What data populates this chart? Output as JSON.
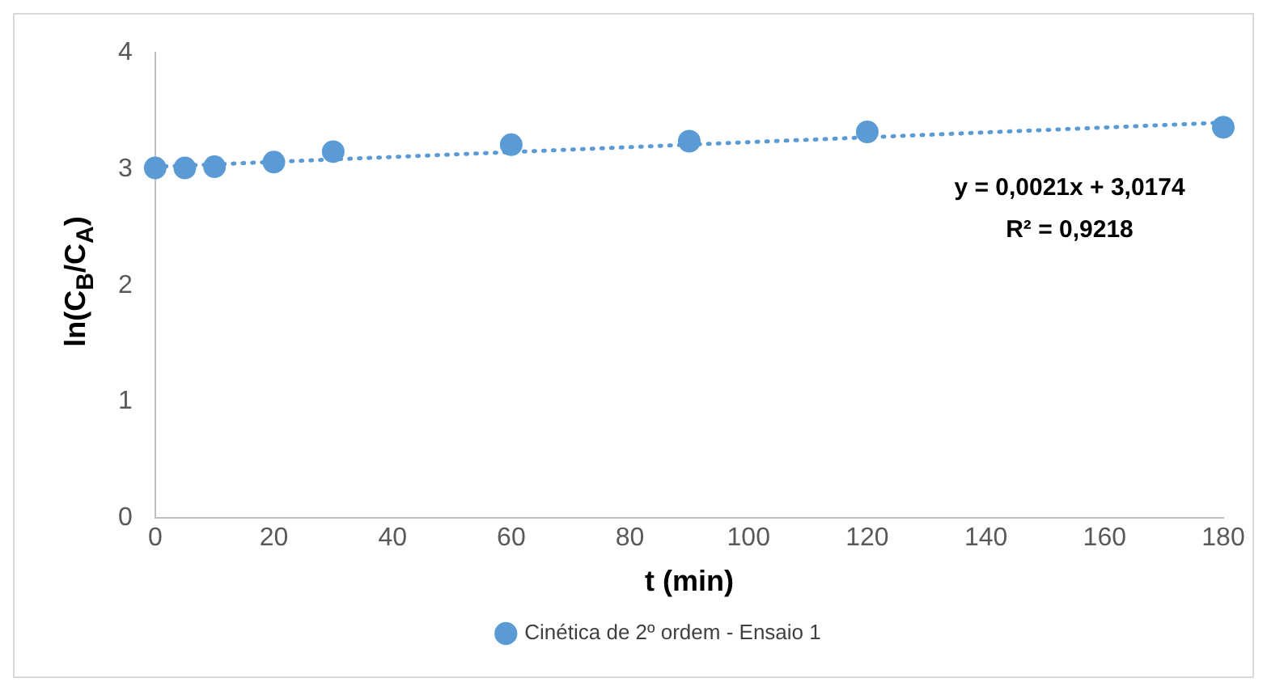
{
  "chart_data": {
    "type": "scatter",
    "xlabel": "t (min)",
    "ylabel": "ln(C$_{B}$/C$_{A}$)",
    "xlim": [
      0,
      180
    ],
    "xticks": [
      0,
      20,
      40,
      60,
      80,
      100,
      120,
      140,
      160,
      180
    ],
    "ylim": [
      0,
      4
    ],
    "yticks": [
      0,
      1,
      2,
      3,
      4
    ],
    "grid": false,
    "legend": "bottom",
    "annotations": [
      "y = 0,0021x + 3,0174",
      "R² = 0,9218"
    ],
    "series": [
      {
        "name": "Cinética de 2º ordem - Ensaio 1",
        "color": "#5b9bd5",
        "marker": "circle",
        "x": [
          0,
          5,
          10,
          20,
          30,
          60,
          90,
          120,
          180
        ],
        "values": [
          3.01,
          3.01,
          3.02,
          3.06,
          3.15,
          3.21,
          3.24,
          3.32,
          3.36
        ]
      },
      {
        "type": "line",
        "color": "#5b9bd5",
        "marker": "none",
        "line_style": "dotted",
        "x": [
          0,
          180
        ],
        "values": [
          3.02,
          3.4
        ]
      }
    ]
  }
}
